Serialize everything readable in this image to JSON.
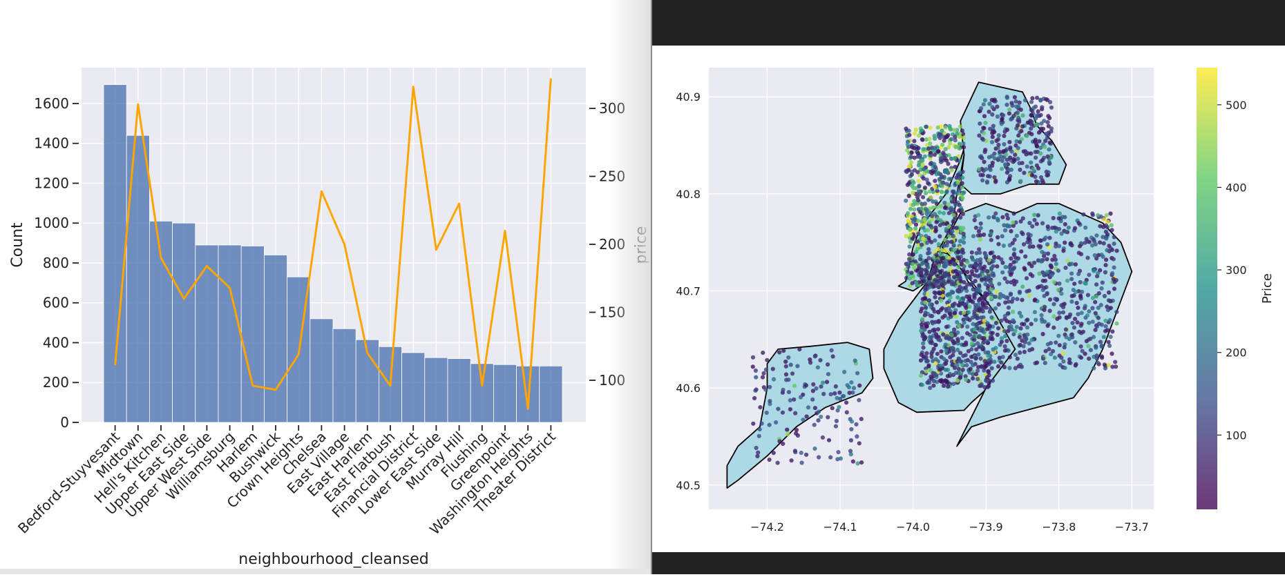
{
  "chart_data": [
    {
      "type": "bar",
      "xlabel": "neighbourhood_cleansed",
      "ylabel": "Count",
      "ylabel_right": "price",
      "categories": [
        "Bedford-Stuyvesant",
        "Midtown",
        "Hell's Kitchen",
        "Upper East Side",
        "Upper West Side",
        "Williamsburg",
        "Harlem",
        "Bushwick",
        "Crown Heights",
        "Chelsea",
        "East Village",
        "East Harlem",
        "East Flatbush",
        "Financial District",
        "Lower East Side",
        "Murray Hill",
        "Flushing",
        "Greenpoint",
        "Washington Heights",
        "Theater District"
      ],
      "series": [
        {
          "axis": "left",
          "color": "#4c72b0",
          "values": [
            1695,
            1440,
            1010,
            1000,
            890,
            890,
            885,
            840,
            730,
            520,
            470,
            415,
            380,
            350,
            325,
            320,
            295,
            290,
            283,
            283
          ]
        },
        {
          "axis": "right",
          "color": "#ffa500",
          "values": [
            111,
            303,
            190,
            160,
            184,
            168,
            96,
            93,
            119,
            239,
            200,
            120,
            96,
            316,
            196,
            230,
            96,
            210,
            79,
            322
          ]
        }
      ],
      "ylim": [
        0,
        1780
      ],
      "yticks": [
        0,
        200,
        400,
        600,
        800,
        1000,
        1200,
        1400,
        1600
      ],
      "ylim_right": [
        69,
        330
      ],
      "yticks_right": [
        100,
        150,
        200,
        250,
        300
      ],
      "grid": true
    },
    {
      "type": "scatter",
      "map": "boroughs outline, light blue fill",
      "xlim": [
        -74.28,
        -73.67
      ],
      "ylim": [
        40.475,
        40.93
      ],
      "xticks": [
        "−74.2",
        "−74.1",
        "−74.0",
        "−73.9",
        "−73.8",
        "−73.7"
      ],
      "xtick_values": [
        -74.2,
        -74.1,
        -74.0,
        -73.9,
        -73.8,
        -73.7
      ],
      "yticks": [
        "40.5",
        "40.6",
        "40.7",
        "40.8",
        "40.9"
      ],
      "ytick_values": [
        40.5,
        40.6,
        40.7,
        40.8,
        40.9
      ],
      "colorbar_label": "Price",
      "colorbar_ticks": [
        "100",
        "200",
        "300",
        "400",
        "500"
      ],
      "colorbar_values": [
        100,
        200,
        300,
        400,
        500
      ],
      "colorbar_range": [
        10,
        545
      ],
      "colormap": [
        "#440154",
        "#3b528b",
        "#21918c",
        "#5ec962",
        "#fde725"
      ],
      "land_color": "#add8e6",
      "grid": true
    }
  ]
}
